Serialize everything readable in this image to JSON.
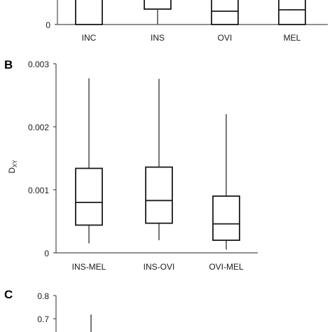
{
  "chart_data": [
    {
      "panel": "",
      "type": "box",
      "categories": [
        "INC",
        "INS",
        "OVI",
        "MEL"
      ],
      "y_ticks": [
        "0"
      ],
      "boxes": [
        {
          "q1": 0,
          "median": 0,
          "q3": null,
          "lower_whisker": 0,
          "upper_whisker": null
        },
        {
          "q1": null,
          "median": null,
          "q3": null,
          "lower_whisker": null,
          "upper_whisker": null
        },
        {
          "q1": 0,
          "median": null,
          "q3": null,
          "lower_whisker": 0,
          "upper_whisker": null
        },
        {
          "q1": 0,
          "median": null,
          "q3": null,
          "lower_whisker": 0,
          "upper_whisker": null
        }
      ]
    },
    {
      "panel": "B",
      "type": "box",
      "ylabel": "D",
      "ylabel_sub": "XY",
      "categories": [
        "INS-MEL",
        "INS-OVI",
        "OVI-MEL"
      ],
      "y_ticks": [
        "0",
        "0.001",
        "0.002",
        "0.003"
      ],
      "ylim": [
        0,
        0.003
      ],
      "boxes": [
        {
          "lower_whisker": 0.00015,
          "q1": 0.00044,
          "median": 0.0008,
          "q3": 0.00134,
          "upper_whisker": 0.00277
        },
        {
          "lower_whisker": 0.0002,
          "q1": 0.00047,
          "median": 0.00083,
          "q3": 0.00136,
          "upper_whisker": 0.00276
        },
        {
          "lower_whisker": 5e-05,
          "q1": 0.0002,
          "median": 0.00046,
          "q3": 0.0009,
          "upper_whisker": 0.0022
        }
      ]
    },
    {
      "panel": "C",
      "type": "box",
      "y_ticks": [
        "0.8",
        "0.7",
        "0.6"
      ],
      "partial": true,
      "whisker_top": 0.72
    }
  ]
}
